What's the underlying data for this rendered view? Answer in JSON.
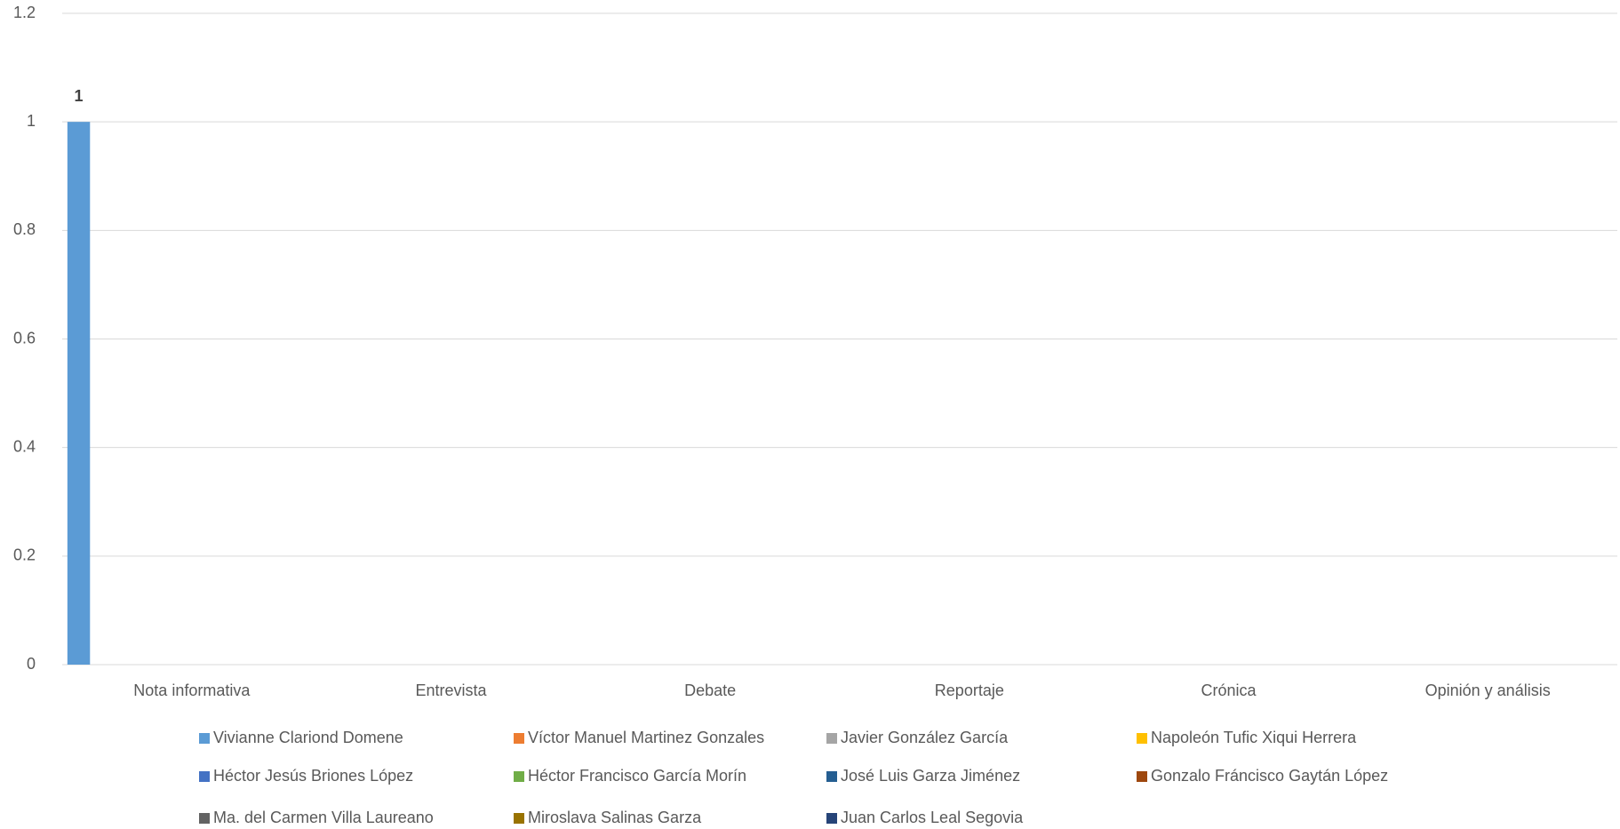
{
  "chart_data": {
    "type": "bar",
    "categories": [
      "Nota informativa",
      "Entrevista",
      "Debate",
      "Reportaje",
      "Crónica",
      "Opinión y análisis"
    ],
    "series": [
      {
        "name": "Vivianne Clariond Domene",
        "color": "#5B9BD5",
        "values": [
          1,
          0,
          0,
          0,
          0,
          0
        ]
      },
      {
        "name": "Víctor Manuel Martinez Gonzales",
        "color": "#ED7D31",
        "values": [
          0,
          0,
          0,
          0,
          0,
          0
        ]
      },
      {
        "name": "Javier González García",
        "color": "#A5A5A5",
        "values": [
          0,
          0,
          0,
          0,
          0,
          0
        ]
      },
      {
        "name": "Napoleón Tufic Xiqui Herrera",
        "color": "#FFC000",
        "values": [
          0,
          0,
          0,
          0,
          0,
          0
        ]
      },
      {
        "name": "Héctor Jesús Briones López",
        "color": "#4472C4",
        "values": [
          0,
          0,
          0,
          0,
          0,
          0
        ]
      },
      {
        "name": "Héctor Francisco García Morín",
        "color": "#70AD47",
        "values": [
          0,
          0,
          0,
          0,
          0,
          0
        ]
      },
      {
        "name": "José Luis Garza Jiménez",
        "color": "#255E91",
        "values": [
          0,
          0,
          0,
          0,
          0,
          0
        ]
      },
      {
        "name": "Gonzalo Fráncisco Gaytán López",
        "color": "#9E480E",
        "values": [
          0,
          0,
          0,
          0,
          0,
          0
        ]
      },
      {
        "name": "Ma. del Carmen Villa Laureano",
        "color": "#636363",
        "values": [
          0,
          0,
          0,
          0,
          0,
          0
        ]
      },
      {
        "name": "Miroslava Salinas Garza",
        "color": "#997300",
        "values": [
          0,
          0,
          0,
          0,
          0,
          0
        ]
      },
      {
        "name": "Juan Carlos Leal Segovia",
        "color": "#264478",
        "values": [
          0,
          0,
          0,
          0,
          0,
          0
        ]
      }
    ],
    "ylim": [
      0,
      1.2
    ],
    "yticks": [
      0,
      0.2,
      0.4,
      0.6,
      0.8,
      1,
      1.2
    ],
    "grid": true,
    "legend": "bottom"
  }
}
